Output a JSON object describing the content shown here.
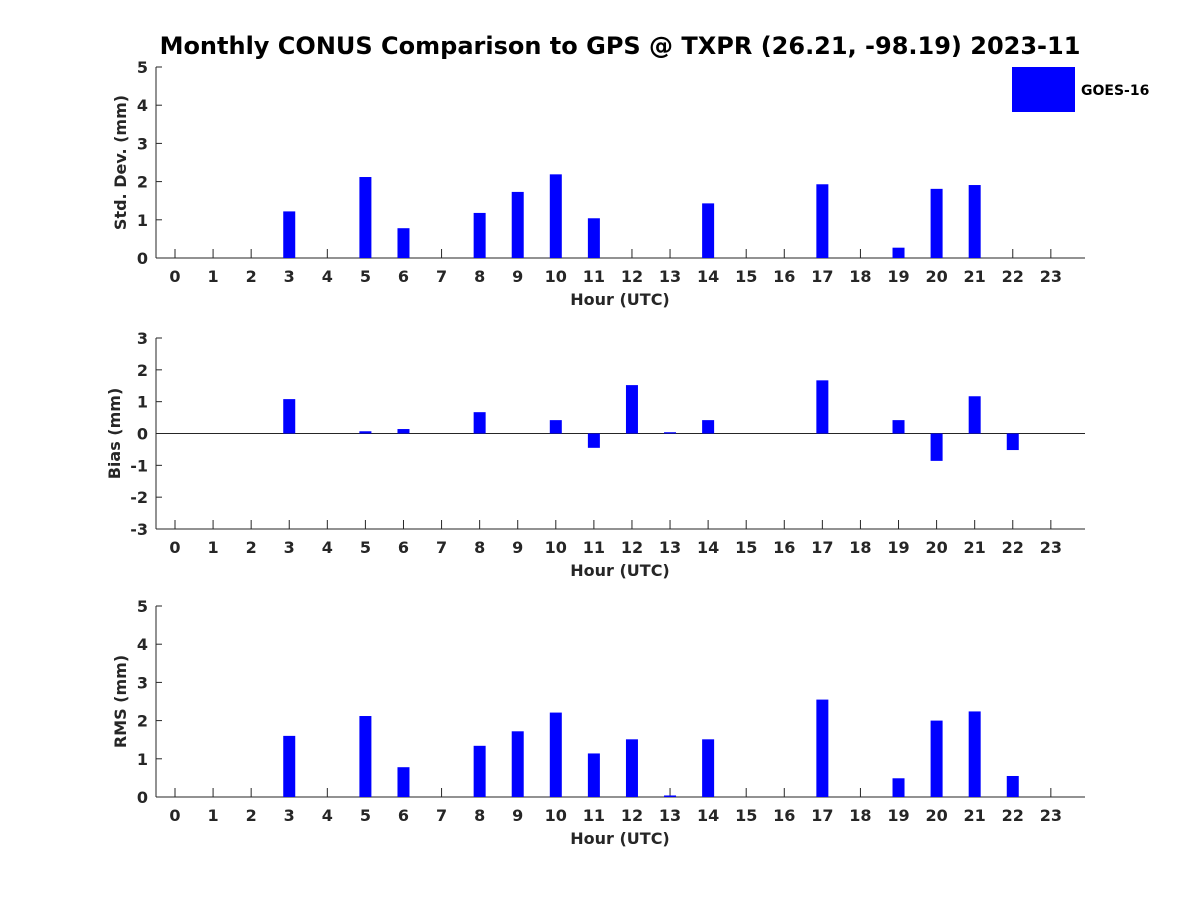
{
  "chart_data": [
    {
      "type": "bar",
      "title": "Monthly CONUS Comparison to GPS @ TXPR (26.21, -98.19) 2023-11",
      "xlabel": "Hour (UTC)",
      "ylabel": "Std. Dev. (mm)",
      "ylim": [
        0,
        5
      ],
      "yticks": [
        "0",
        "1",
        "2",
        "3",
        "4",
        "5"
      ],
      "categories": [
        "0",
        "1",
        "2",
        "3",
        "4",
        "5",
        "6",
        "7",
        "8",
        "9",
        "10",
        "11",
        "12",
        "13",
        "14",
        "15",
        "16",
        "17",
        "18",
        "19",
        "20",
        "21",
        "22",
        "23"
      ],
      "series": [
        {
          "name": "GOES-16",
          "color": "#0000ff",
          "values": [
            0,
            0,
            0,
            1.22,
            0,
            2.12,
            0.78,
            0,
            1.18,
            1.73,
            2.19,
            1.04,
            0,
            0,
            1.43,
            0,
            0,
            1.93,
            0,
            0.27,
            1.81,
            1.91,
            0,
            0
          ]
        }
      ],
      "legend": {
        "position": "top-right",
        "entries": [
          "GOES-16"
        ]
      }
    },
    {
      "type": "bar",
      "xlabel": "Hour (UTC)",
      "ylabel": "Bias (mm)",
      "ylim": [
        -3,
        3
      ],
      "yticks": [
        "-3",
        "-2",
        "-1",
        "0",
        "1",
        "2",
        "3"
      ],
      "categories": [
        "0",
        "1",
        "2",
        "3",
        "4",
        "5",
        "6",
        "7",
        "8",
        "9",
        "10",
        "11",
        "12",
        "13",
        "14",
        "15",
        "16",
        "17",
        "18",
        "19",
        "20",
        "21",
        "22",
        "23"
      ],
      "series": [
        {
          "name": "GOES-16",
          "color": "#0000ff",
          "values": [
            0,
            0,
            0,
            1.08,
            0,
            0.07,
            0.14,
            0,
            0.67,
            0,
            0.42,
            -0.45,
            1.52,
            0.04,
            0.42,
            0,
            0,
            1.67,
            0,
            0.42,
            -0.86,
            1.17,
            -0.52,
            0
          ]
        }
      ]
    },
    {
      "type": "bar",
      "xlabel": "Hour (UTC)",
      "ylabel": "RMS (mm)",
      "ylim": [
        0,
        5
      ],
      "yticks": [
        "0",
        "1",
        "2",
        "3",
        "4",
        "5"
      ],
      "categories": [
        "0",
        "1",
        "2",
        "3",
        "4",
        "5",
        "6",
        "7",
        "8",
        "9",
        "10",
        "11",
        "12",
        "13",
        "14",
        "15",
        "16",
        "17",
        "18",
        "19",
        "20",
        "21",
        "22",
        "23"
      ],
      "series": [
        {
          "name": "GOES-16",
          "color": "#0000ff",
          "values": [
            0,
            0,
            0,
            1.6,
            0,
            2.12,
            0.78,
            0,
            1.34,
            1.72,
            2.21,
            1.14,
            1.51,
            0.04,
            1.51,
            0,
            0,
            2.55,
            0,
            0.49,
            2.0,
            2.24,
            0.55,
            0
          ]
        }
      ]
    }
  ]
}
